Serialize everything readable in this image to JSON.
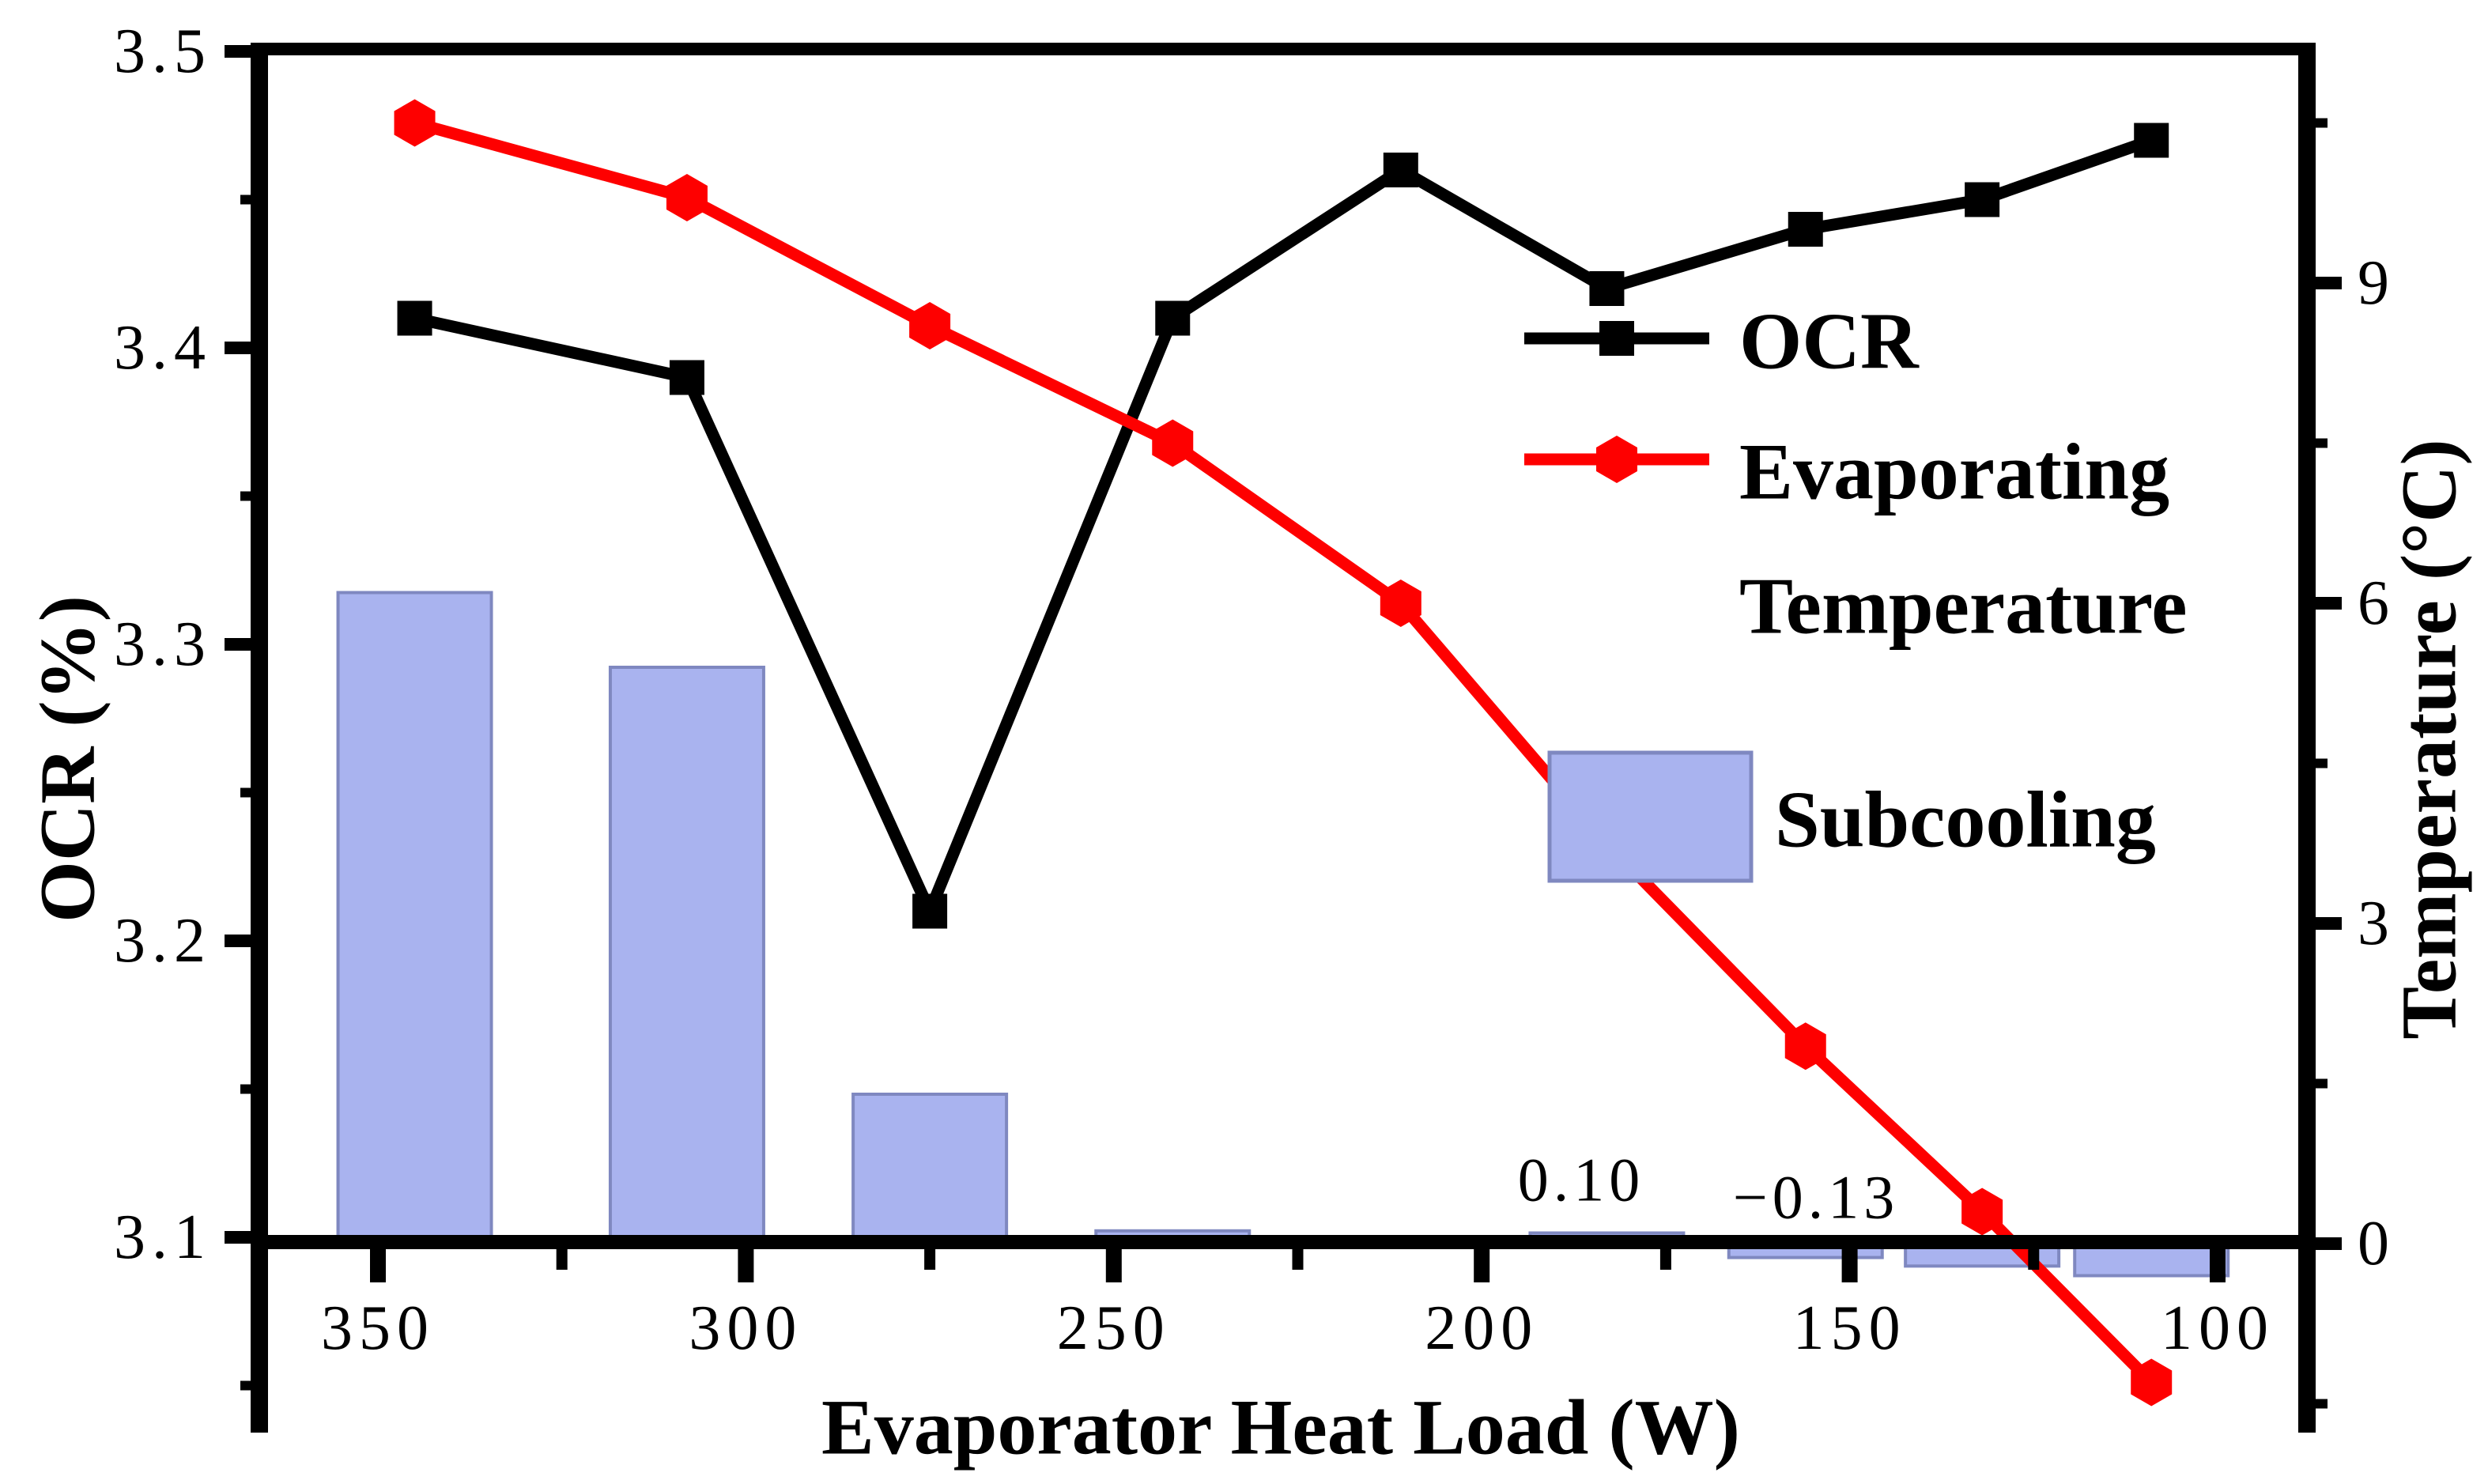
{
  "chart_data": {
    "type": "composite",
    "x_label": "Evaporator Heat Load (W)",
    "x": [
      345,
      308,
      275,
      242,
      211,
      183,
      156,
      132,
      109
    ],
    "x_axis": {
      "reversed": true,
      "range": [
        366,
        87
      ],
      "major_ticks": [
        350,
        300,
        250,
        200,
        150,
        100
      ],
      "minor_ticks": [
        325,
        275,
        225,
        175,
        125
      ]
    },
    "left_axis": {
      "label": "OCR (%)",
      "major_ticks": [
        3.5,
        3.4,
        3.3,
        3.2,
        3.1
      ],
      "minor_ticks": [
        3.45,
        3.35,
        3.25,
        3.15,
        3.05
      ],
      "axis_line_at": 3.1
    },
    "right_axis": {
      "label": "Temperature (°C)",
      "major_ticks": [
        9,
        6,
        3,
        0
      ],
      "minor_ticks": [
        10.5,
        7.5,
        4.5,
        1.5,
        -1.5
      ],
      "axis_line_at": 0
    },
    "series": [
      {
        "name": "OCR",
        "type": "line",
        "axis": "left",
        "marker": "square",
        "color": "#000000",
        "values": [
          3.41,
          3.39,
          3.21,
          3.41,
          3.46,
          3.42,
          3.44,
          3.45,
          3.47
        ]
      },
      {
        "name": "Evaporating Temperature",
        "type": "line",
        "axis": "right",
        "marker": "hexagon",
        "color": "#fe0000",
        "values": [
          10.5,
          9.8,
          8.6,
          7.5,
          6.0,
          3.75,
          1.85,
          0.3,
          -1.3
        ]
      },
      {
        "name": "Subcooling",
        "type": "bar",
        "axis": "right",
        "color": "#a9b3ef",
        "edge_color": "#7f88c0",
        "values": [
          6.1,
          5.4,
          1.4,
          0.12,
          0,
          0.1,
          -0.13,
          -0.21,
          -0.3
        ]
      }
    ],
    "annotations": [
      {
        "text": "0.10"
      },
      {
        "text": "−0.13"
      }
    ],
    "legend_position": "upper right inside"
  },
  "axis_titles": {
    "x": "Evaporator Heat Load (W)",
    "left": "OCR (%)",
    "right": "Temperature (°C)"
  },
  "legend": {
    "ocr": "OCR",
    "evap_line1": "Evaporating",
    "evap_line2": "Temperature",
    "subcooling": "Subcooling"
  },
  "colors": {
    "bar_fill": "#a9b3ef",
    "bar_edge": "#7f88c0",
    "red": "#fe0000",
    "black": "#000000",
    "background": "#ffffff"
  }
}
